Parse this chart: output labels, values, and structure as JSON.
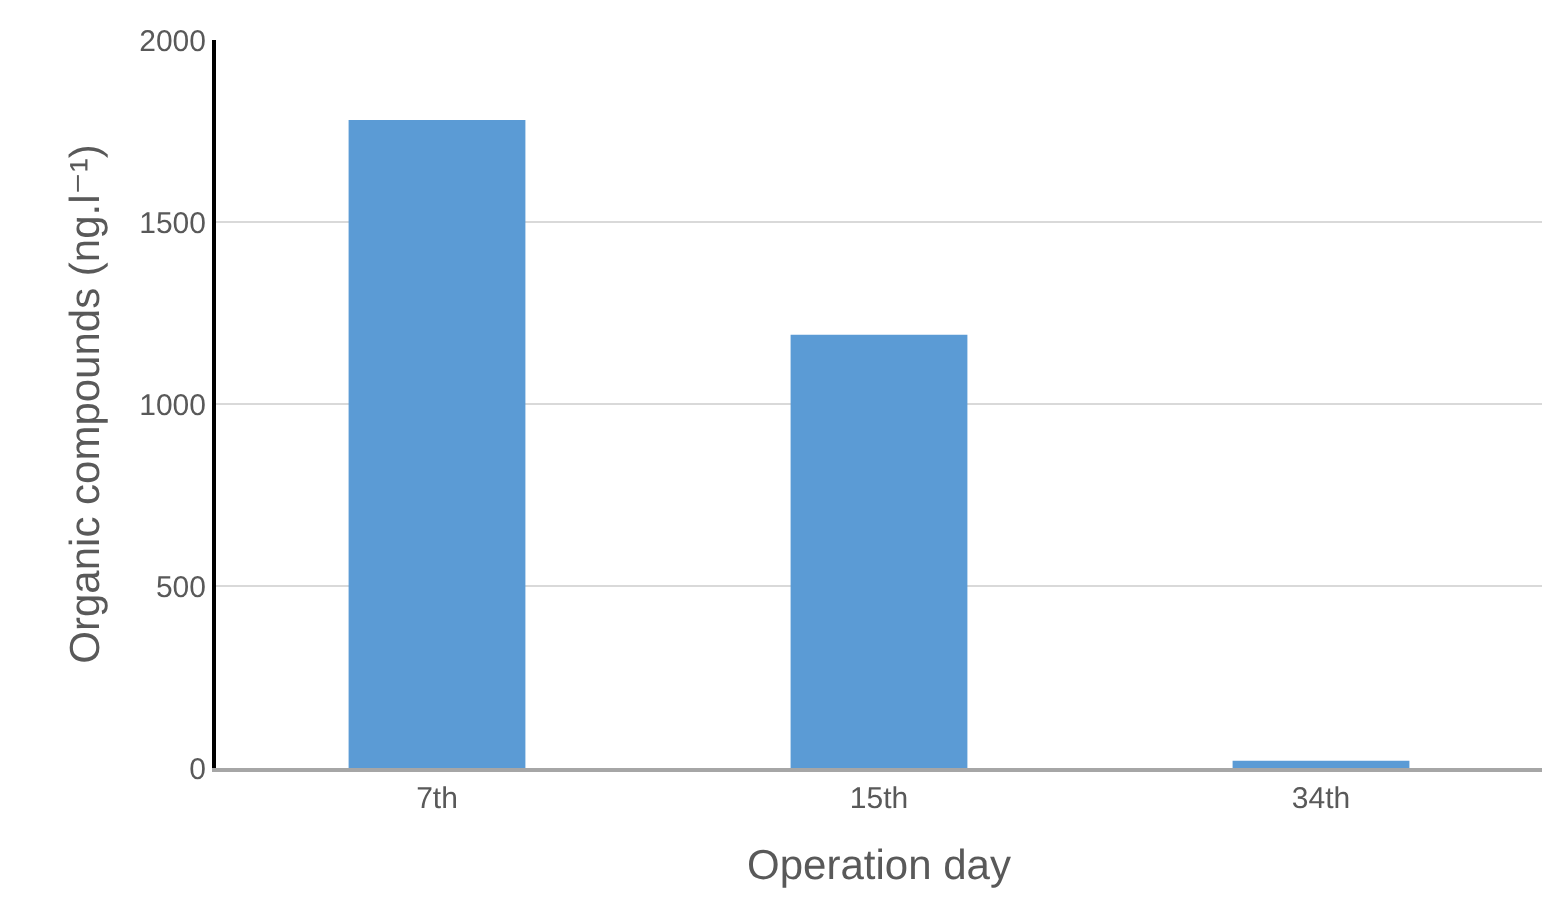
{
  "chart_data": {
    "type": "bar",
    "xlabel": "Operation day",
    "ylabel": "Organic compounds (ng.l⁻¹)",
    "categories": [
      "7th",
      "15th",
      "34th"
    ],
    "values": [
      1780,
      1190,
      20
    ],
    "color": "#5b9bd5",
    "ylim": [
      0,
      2000
    ],
    "yticks": [
      0,
      500,
      1000,
      1500,
      2000
    ],
    "grid": "y"
  }
}
